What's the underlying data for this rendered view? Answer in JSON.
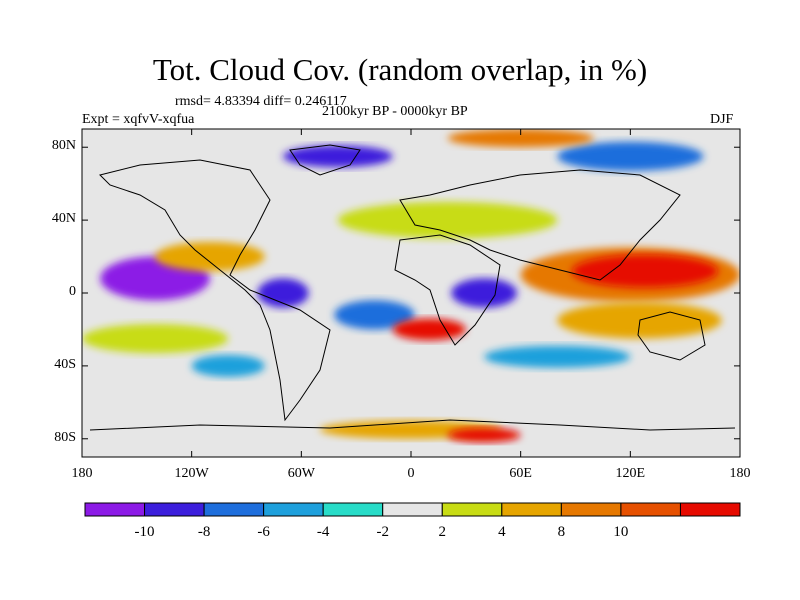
{
  "title": "Tot. Cloud Cov. (random overlap, in %)",
  "stats_text": "rmsd= 4.83394 diff= 0.246117",
  "period_text": "2100kyr BP - 0000kyr BP",
  "experiment_text": "Expt = xqfvV-xqfua",
  "season": "DJF",
  "map": {
    "lon_range": [
      -180,
      180
    ],
    "lat_range": [
      -90,
      90
    ],
    "lon_ticks": [
      {
        "value": -180,
        "label": "180"
      },
      {
        "value": -120,
        "label": "120W"
      },
      {
        "value": -60,
        "label": "60W"
      },
      {
        "value": 0,
        "label": "0"
      },
      {
        "value": 60,
        "label": "60E"
      },
      {
        "value": 120,
        "label": "120E"
      },
      {
        "value": 180,
        "label": "180"
      }
    ],
    "lat_ticks": [
      {
        "value": 80,
        "label": "80N"
      },
      {
        "value": 40,
        "label": "40N"
      },
      {
        "value": 0,
        "label": "0"
      },
      {
        "value": -40,
        "label": "40S"
      },
      {
        "value": -80,
        "label": "80S"
      }
    ],
    "anomaly_blobs": [
      {
        "lon": -140,
        "lat": 8,
        "rlon": 30,
        "rlat": 12,
        "level": -10
      },
      {
        "lon": -70,
        "lat": 0,
        "rlon": 14,
        "rlat": 8,
        "level": -8
      },
      {
        "lon": -20,
        "lat": -12,
        "rlon": 22,
        "rlat": 8,
        "level": -6
      },
      {
        "lon": 40,
        "lat": 0,
        "rlon": 18,
        "rlat": 8,
        "level": -8
      },
      {
        "lon": 120,
        "lat": 10,
        "rlon": 60,
        "rlat": 15,
        "level": 8
      },
      {
        "lon": 128,
        "lat": 12,
        "rlon": 40,
        "rlat": 9,
        "level": 10
      },
      {
        "lon": 125,
        "lat": -15,
        "rlon": 45,
        "rlat": 10,
        "level": 6
      },
      {
        "lon": -110,
        "lat": 20,
        "rlon": 30,
        "rlat": 8,
        "level": 6
      },
      {
        "lon": -140,
        "lat": -25,
        "rlon": 40,
        "rlat": 8,
        "level": 4
      },
      {
        "lon": 10,
        "lat": -20,
        "rlon": 20,
        "rlat": 6,
        "level": 10
      },
      {
        "lon": 20,
        "lat": 40,
        "rlon": 60,
        "rlat": 10,
        "level": 4
      },
      {
        "lon": -100,
        "lat": -40,
        "rlon": 20,
        "rlat": 6,
        "level": -4
      },
      {
        "lon": 80,
        "lat": -35,
        "rlon": 40,
        "rlat": 6,
        "level": -4
      },
      {
        "lon": -40,
        "lat": 75,
        "rlon": 30,
        "rlat": 6,
        "level": -8
      },
      {
        "lon": 120,
        "lat": 75,
        "rlon": 40,
        "rlat": 8,
        "level": -6
      },
      {
        "lon": 60,
        "lat": 85,
        "rlon": 40,
        "rlat": 5,
        "level": 8
      },
      {
        "lon": 0,
        "lat": -75,
        "rlon": 50,
        "rlat": 5,
        "level": 6
      },
      {
        "lon": 40,
        "lat": -78,
        "rlon": 20,
        "rlat": 4,
        "level": 10
      }
    ]
  },
  "colorbar": {
    "colors": [
      "#8c1ae6",
      "#3c1edc",
      "#1e6edc",
      "#1ea0dc",
      "#28dcc8",
      "#e6e6e6",
      "#c8dc14",
      "#e6a500",
      "#e67800",
      "#e65000",
      "#e60a00"
    ],
    "labels": [
      "-10",
      "-8",
      "-6",
      "-4",
      "-2",
      "2",
      "4",
      "8",
      "10"
    ],
    "level_colors": {
      "-10": "#8c1ae6",
      "-8": "#3c1edc",
      "-6": "#1e6edc",
      "-4": "#1ea0dc",
      "4": "#c8dc14",
      "6": "#e6a500",
      "8": "#e67800",
      "10": "#e60a00"
    }
  }
}
